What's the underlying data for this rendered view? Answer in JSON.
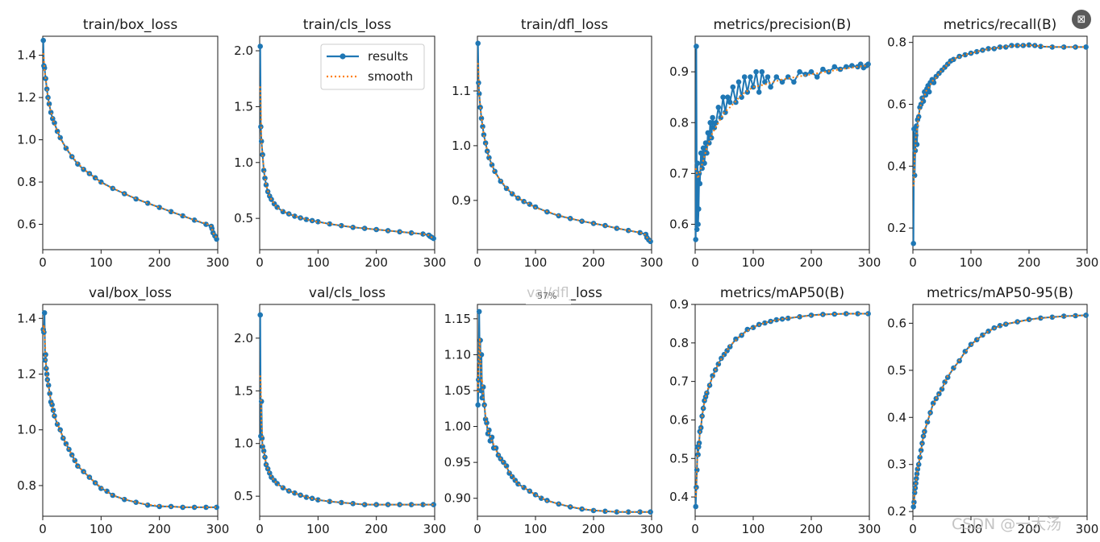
{
  "legend": {
    "results_label": "results",
    "smooth_label": "smooth"
  },
  "overlay": {
    "zoom_text": "57%",
    "watermark": "CSDN @一大汤",
    "lens_icon": "image-search-icon"
  },
  "colors": {
    "results": "#1f77b4",
    "smooth": "#ff7f0e",
    "axis": "#1a1a1a",
    "background": "#ffffff"
  },
  "chart_data": [
    {
      "type": "line",
      "title": "train/box_loss",
      "xlim": [
        0,
        300
      ],
      "ylim": [
        0.48,
        1.49
      ],
      "xticks": [
        0,
        100,
        200,
        300
      ],
      "yticks": [
        0.6,
        0.8,
        1.0,
        1.2,
        1.4
      ],
      "series": [
        {
          "name": "results",
          "x": [
            1,
            2,
            3,
            5,
            7,
            9,
            11,
            14,
            17,
            20,
            25,
            30,
            40,
            50,
            60,
            70,
            80,
            90,
            100,
            120,
            140,
            160,
            180,
            200,
            220,
            240,
            260,
            280,
            289,
            290,
            292,
            295,
            298
          ],
          "values": [
            1.47,
            1.35,
            1.34,
            1.29,
            1.24,
            1.2,
            1.17,
            1.13,
            1.1,
            1.08,
            1.04,
            1.01,
            0.96,
            0.92,
            0.885,
            0.86,
            0.84,
            0.82,
            0.8,
            0.77,
            0.745,
            0.72,
            0.7,
            0.68,
            0.66,
            0.64,
            0.62,
            0.6,
            0.59,
            0.58,
            0.56,
            0.545,
            0.53
          ]
        }
      ]
    },
    {
      "type": "line",
      "title": "train/cls_loss",
      "xlim": [
        0,
        300
      ],
      "ylim": [
        0.22,
        2.13
      ],
      "xticks": [
        0,
        100,
        200,
        300
      ],
      "yticks": [
        0.5,
        1.0,
        1.5,
        2.0
      ],
      "series": [
        {
          "name": "results",
          "x": [
            1,
            2,
            3,
            5,
            7,
            9,
            11,
            14,
            17,
            20,
            25,
            30,
            40,
            50,
            60,
            70,
            80,
            90,
            100,
            120,
            140,
            160,
            180,
            200,
            220,
            240,
            260,
            280,
            290,
            292,
            295,
            298
          ],
          "values": [
            2.04,
            1.32,
            1.19,
            1.07,
            0.93,
            0.86,
            0.8,
            0.74,
            0.7,
            0.67,
            0.63,
            0.6,
            0.56,
            0.54,
            0.52,
            0.505,
            0.49,
            0.48,
            0.47,
            0.45,
            0.435,
            0.42,
            0.41,
            0.4,
            0.39,
            0.38,
            0.37,
            0.36,
            0.35,
            0.34,
            0.33,
            0.32
          ]
        }
      ]
    },
    {
      "type": "line",
      "title": "train/dfl_loss",
      "xlim": [
        0,
        300
      ],
      "ylim": [
        0.81,
        1.2
      ],
      "xticks": [
        0,
        100,
        200,
        300
      ],
      "yticks": [
        0.9,
        1.0,
        1.1
      ],
      "series": [
        {
          "name": "results",
          "x": [
            1,
            2,
            3,
            5,
            7,
            9,
            11,
            14,
            17,
            20,
            25,
            30,
            40,
            50,
            60,
            70,
            80,
            90,
            100,
            120,
            140,
            160,
            180,
            200,
            220,
            240,
            260,
            280,
            290,
            292,
            295,
            298
          ],
          "values": [
            1.187,
            1.115,
            1.095,
            1.07,
            1.05,
            1.035,
            1.02,
            1.005,
            0.99,
            0.978,
            0.965,
            0.953,
            0.935,
            0.922,
            0.912,
            0.904,
            0.898,
            0.893,
            0.888,
            0.879,
            0.872,
            0.867,
            0.862,
            0.858,
            0.854,
            0.849,
            0.845,
            0.841,
            0.838,
            0.832,
            0.828,
            0.825
          ]
        }
      ]
    },
    {
      "type": "line",
      "title": "metrics/precision(B)",
      "xlim": [
        0,
        300
      ],
      "ylim": [
        0.55,
        0.97
      ],
      "xticks": [
        0,
        100,
        200,
        300
      ],
      "yticks": [
        0.6,
        0.7,
        0.8,
        0.9
      ],
      "series": [
        {
          "name": "results",
          "x": [
            1,
            2,
            3,
            4,
            5,
            6,
            7,
            8,
            10,
            12,
            14,
            16,
            18,
            20,
            22,
            24,
            26,
            28,
            30,
            33,
            36,
            40,
            44,
            48,
            52,
            56,
            60,
            65,
            70,
            75,
            80,
            85,
            90,
            95,
            100,
            105,
            110,
            115,
            120,
            125,
            130,
            140,
            150,
            160,
            170,
            180,
            190,
            200,
            210,
            220,
            230,
            240,
            250,
            260,
            270,
            280,
            285,
            290,
            295,
            298
          ],
          "values": [
            0.57,
            0.95,
            0.59,
            0.72,
            0.6,
            0.63,
            0.7,
            0.68,
            0.74,
            0.71,
            0.75,
            0.72,
            0.76,
            0.74,
            0.78,
            0.76,
            0.8,
            0.77,
            0.81,
            0.79,
            0.8,
            0.83,
            0.81,
            0.85,
            0.82,
            0.85,
            0.84,
            0.87,
            0.84,
            0.88,
            0.85,
            0.89,
            0.86,
            0.89,
            0.87,
            0.9,
            0.86,
            0.9,
            0.88,
            0.89,
            0.87,
            0.89,
            0.88,
            0.89,
            0.88,
            0.9,
            0.895,
            0.9,
            0.89,
            0.905,
            0.9,
            0.91,
            0.905,
            0.91,
            0.912,
            0.91,
            0.915,
            0.908,
            0.912,
            0.915
          ]
        },
        {
          "name": "smooth",
          "x": [
            1,
            5,
            10,
            20,
            30,
            40,
            50,
            60,
            80,
            100,
            120,
            150,
            200,
            250,
            298
          ],
          "values": [
            0.71,
            0.69,
            0.71,
            0.75,
            0.78,
            0.8,
            0.82,
            0.83,
            0.855,
            0.87,
            0.875,
            0.885,
            0.895,
            0.905,
            0.913
          ]
        }
      ]
    },
    {
      "type": "line",
      "title": "metrics/recall(B)",
      "xlim": [
        0,
        300
      ],
      "ylim": [
        0.13,
        0.82
      ],
      "xticks": [
        0,
        100,
        200,
        300
      ],
      "yticks": [
        0.2,
        0.4,
        0.6,
        0.8
      ],
      "series": [
        {
          "name": "results",
          "x": [
            1,
            2,
            3,
            4,
            5,
            6,
            7,
            8,
            10,
            12,
            14,
            16,
            18,
            20,
            22,
            24,
            26,
            28,
            30,
            33,
            36,
            40,
            45,
            50,
            55,
            60,
            65,
            70,
            80,
            90,
            100,
            110,
            120,
            130,
            140,
            150,
            160,
            170,
            180,
            190,
            200,
            210,
            220,
            240,
            260,
            280,
            298
          ],
          "values": [
            0.15,
            0.52,
            0.37,
            0.45,
            0.5,
            0.53,
            0.47,
            0.55,
            0.56,
            0.59,
            0.6,
            0.62,
            0.61,
            0.64,
            0.63,
            0.65,
            0.66,
            0.64,
            0.67,
            0.68,
            0.67,
            0.69,
            0.7,
            0.71,
            0.72,
            0.73,
            0.74,
            0.745,
            0.755,
            0.76,
            0.765,
            0.77,
            0.775,
            0.78,
            0.78,
            0.785,
            0.785,
            0.79,
            0.79,
            0.79,
            0.792,
            0.79,
            0.787,
            0.785,
            0.785,
            0.785,
            0.785
          ]
        }
      ]
    },
    {
      "type": "line",
      "title": "val/box_loss",
      "xlim": [
        0,
        300
      ],
      "ylim": [
        0.69,
        1.45
      ],
      "xticks": [
        0,
        100,
        200,
        300
      ],
      "yticks": [
        0.8,
        1.0,
        1.2,
        1.4
      ],
      "series": [
        {
          "name": "results",
          "x": [
            1,
            2,
            3,
            4,
            5,
            6,
            7,
            8,
            10,
            12,
            14,
            16,
            18,
            20,
            25,
            30,
            35,
            40,
            45,
            50,
            55,
            60,
            70,
            80,
            90,
            100,
            110,
            120,
            140,
            160,
            180,
            200,
            220,
            240,
            260,
            280,
            298
          ],
          "values": [
            1.36,
            1.35,
            1.42,
            1.25,
            1.27,
            1.22,
            1.2,
            1.18,
            1.16,
            1.13,
            1.1,
            1.09,
            1.07,
            1.05,
            1.02,
            1.0,
            0.97,
            0.95,
            0.93,
            0.91,
            0.89,
            0.87,
            0.85,
            0.83,
            0.81,
            0.79,
            0.78,
            0.765,
            0.75,
            0.74,
            0.73,
            0.725,
            0.725,
            0.722,
            0.722,
            0.722,
            0.722
          ]
        }
      ]
    },
    {
      "type": "line",
      "title": "val/cls_loss",
      "xlim": [
        0,
        300
      ],
      "ylim": [
        0.31,
        2.32
      ],
      "xticks": [
        0,
        100,
        200,
        300
      ],
      "yticks": [
        0.5,
        1.0,
        1.5,
        2.0
      ],
      "series": [
        {
          "name": "results",
          "x": [
            1,
            2,
            3,
            4,
            5,
            7,
            9,
            11,
            14,
            17,
            20,
            25,
            30,
            40,
            50,
            60,
            70,
            80,
            90,
            100,
            120,
            140,
            160,
            180,
            200,
            220,
            240,
            260,
            280,
            298
          ],
          "values": [
            2.22,
            1.07,
            1.4,
            1.05,
            0.97,
            0.93,
            0.87,
            0.8,
            0.76,
            0.72,
            0.68,
            0.65,
            0.62,
            0.58,
            0.55,
            0.53,
            0.51,
            0.49,
            0.48,
            0.465,
            0.45,
            0.44,
            0.43,
            0.42,
            0.42,
            0.42,
            0.42,
            0.42,
            0.42,
            0.42
          ]
        }
      ]
    },
    {
      "type": "line",
      "title": "val/dfl_loss",
      "xlim": [
        0,
        300
      ],
      "ylim": [
        0.875,
        1.17
      ],
      "xticks": [
        0,
        100,
        200,
        300
      ],
      "yticks": [
        0.9,
        0.95,
        1.0,
        1.05,
        1.1,
        1.15
      ],
      "series": [
        {
          "name": "results",
          "x": [
            1,
            2,
            3,
            4,
            5,
            6,
            7,
            8,
            10,
            12,
            14,
            16,
            18,
            20,
            22,
            25,
            28,
            32,
            36,
            40,
            45,
            50,
            55,
            60,
            65,
            70,
            80,
            90,
            100,
            110,
            120,
            140,
            160,
            180,
            200,
            220,
            240,
            260,
            280,
            298
          ],
          "values": [
            1.03,
            1.065,
            1.16,
            1.09,
            1.12,
            1.05,
            1.1,
            1.04,
            1.055,
            1.03,
            1.01,
            1.005,
            0.99,
            0.995,
            0.98,
            0.985,
            0.97,
            0.97,
            0.96,
            0.955,
            0.95,
            0.945,
            0.935,
            0.93,
            0.925,
            0.92,
            0.915,
            0.91,
            0.905,
            0.9,
            0.897,
            0.892,
            0.888,
            0.885,
            0.883,
            0.882,
            0.881,
            0.881,
            0.881,
            0.881
          ]
        }
      ]
    },
    {
      "type": "line",
      "title": "metrics/mAP50(B)",
      "xlim": [
        0,
        300
      ],
      "ylim": [
        0.35,
        0.9
      ],
      "xticks": [
        0,
        100,
        200,
        300
      ],
      "yticks": [
        0.4,
        0.5,
        0.6,
        0.7,
        0.8,
        0.9
      ],
      "series": [
        {
          "name": "results",
          "x": [
            1,
            2,
            3,
            4,
            5,
            6,
            7,
            8,
            10,
            12,
            14,
            16,
            18,
            20,
            25,
            30,
            35,
            40,
            45,
            50,
            55,
            60,
            70,
            80,
            90,
            100,
            110,
            120,
            130,
            140,
            150,
            160,
            180,
            200,
            220,
            240,
            260,
            280,
            298
          ],
          "values": [
            0.375,
            0.425,
            0.47,
            0.53,
            0.51,
            0.53,
            0.54,
            0.57,
            0.58,
            0.61,
            0.63,
            0.65,
            0.66,
            0.67,
            0.69,
            0.715,
            0.73,
            0.745,
            0.76,
            0.77,
            0.78,
            0.79,
            0.81,
            0.82,
            0.835,
            0.84,
            0.848,
            0.852,
            0.856,
            0.86,
            0.862,
            0.864,
            0.868,
            0.872,
            0.874,
            0.875,
            0.876,
            0.876,
            0.876
          ]
        }
      ]
    },
    {
      "type": "line",
      "title": "metrics/mAP50-95(B)",
      "xlim": [
        0,
        300
      ],
      "ylim": [
        0.19,
        0.64
      ],
      "xticks": [
        0,
        100,
        200,
        300
      ],
      "yticks": [
        0.2,
        0.3,
        0.4,
        0.5,
        0.6
      ],
      "series": [
        {
          "name": "results",
          "x": [
            1,
            2,
            3,
            4,
            5,
            6,
            7,
            8,
            10,
            12,
            14,
            16,
            18,
            20,
            25,
            30,
            35,
            40,
            45,
            50,
            55,
            60,
            70,
            80,
            90,
            100,
            110,
            120,
            130,
            140,
            150,
            160,
            180,
            200,
            220,
            240,
            260,
            280,
            298
          ],
          "values": [
            0.21,
            0.22,
            0.24,
            0.25,
            0.26,
            0.27,
            0.28,
            0.29,
            0.3,
            0.315,
            0.33,
            0.345,
            0.36,
            0.37,
            0.39,
            0.41,
            0.43,
            0.44,
            0.45,
            0.46,
            0.475,
            0.485,
            0.505,
            0.52,
            0.54,
            0.555,
            0.565,
            0.575,
            0.583,
            0.59,
            0.595,
            0.598,
            0.603,
            0.608,
            0.611,
            0.613,
            0.615,
            0.616,
            0.617
          ]
        }
      ]
    }
  ]
}
